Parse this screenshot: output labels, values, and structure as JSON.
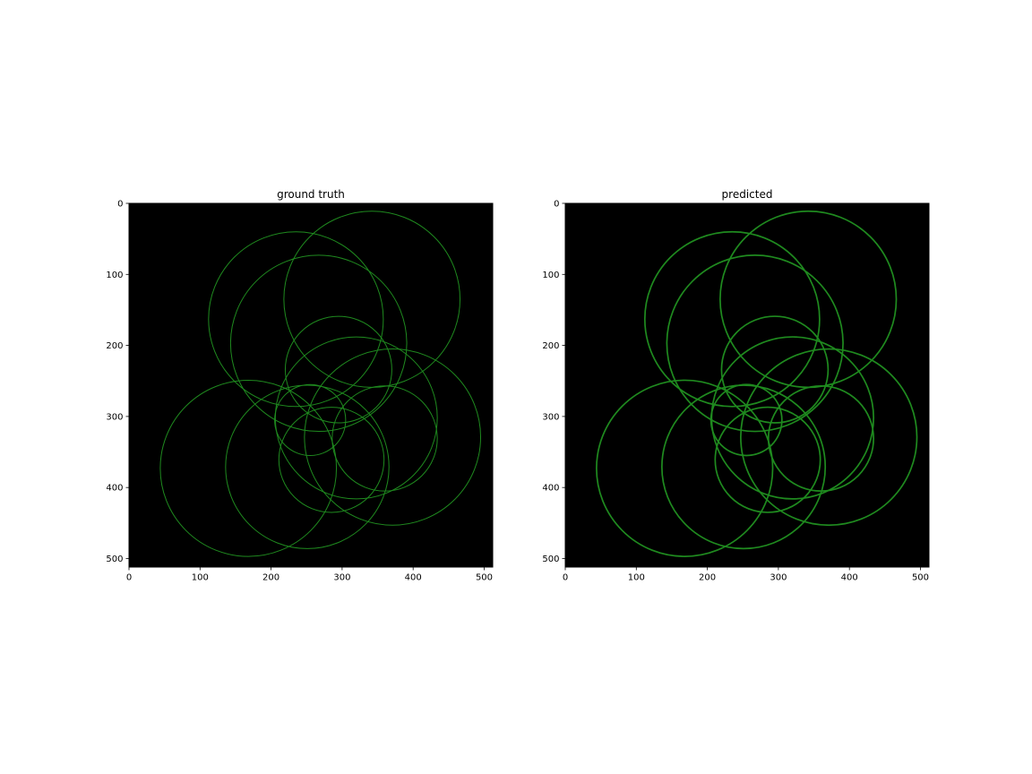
{
  "figure": {
    "background": "#ffffff"
  },
  "chart_data": [
    {
      "type": "image",
      "title": "ground truth",
      "xlabel": "",
      "ylabel": "",
      "xlim": [
        0,
        512
      ],
      "ylim": [
        512,
        0
      ],
      "xticks": [
        0,
        100,
        200,
        300,
        400,
        500
      ],
      "yticks": [
        0,
        100,
        200,
        300,
        400,
        500
      ],
      "grid": false,
      "background_color": "#000000",
      "stroke_color": "#1f8a1f",
      "circles": [
        {
          "cx": 342,
          "cy": 135,
          "r": 124
        },
        {
          "cx": 235,
          "cy": 163,
          "r": 123
        },
        {
          "cx": 267,
          "cy": 197,
          "r": 124
        },
        {
          "cx": 295,
          "cy": 234,
          "r": 75
        },
        {
          "cx": 320,
          "cy": 302,
          "r": 114
        },
        {
          "cx": 371,
          "cy": 329,
          "r": 124
        },
        {
          "cx": 360,
          "cy": 331,
          "r": 74
        },
        {
          "cx": 255,
          "cy": 305,
          "r": 50
        },
        {
          "cx": 168,
          "cy": 373,
          "r": 124
        },
        {
          "cx": 251,
          "cy": 371,
          "r": 115
        },
        {
          "cx": 285,
          "cy": 361,
          "r": 74
        }
      ]
    },
    {
      "type": "image",
      "title": "predicted",
      "xlabel": "",
      "ylabel": "",
      "xlim": [
        0,
        512
      ],
      "ylim": [
        512,
        0
      ],
      "xticks": [
        0,
        100,
        200,
        300,
        400,
        500
      ],
      "yticks": [
        0,
        100,
        200,
        300,
        400,
        500
      ],
      "grid": false,
      "background_color": "#000000",
      "stroke_color": "#1f8a1f",
      "circles": [
        {
          "cx": 342,
          "cy": 135,
          "r": 124
        },
        {
          "cx": 235,
          "cy": 163,
          "r": 123
        },
        {
          "cx": 267,
          "cy": 197,
          "r": 124
        },
        {
          "cx": 295,
          "cy": 234,
          "r": 75
        },
        {
          "cx": 320,
          "cy": 302,
          "r": 114
        },
        {
          "cx": 371,
          "cy": 329,
          "r": 124
        },
        {
          "cx": 360,
          "cy": 331,
          "r": 74
        },
        {
          "cx": 255,
          "cy": 305,
          "r": 50
        },
        {
          "cx": 168,
          "cy": 373,
          "r": 124
        },
        {
          "cx": 251,
          "cy": 371,
          "r": 115
        },
        {
          "cx": 285,
          "cy": 361,
          "r": 74
        }
      ]
    }
  ]
}
